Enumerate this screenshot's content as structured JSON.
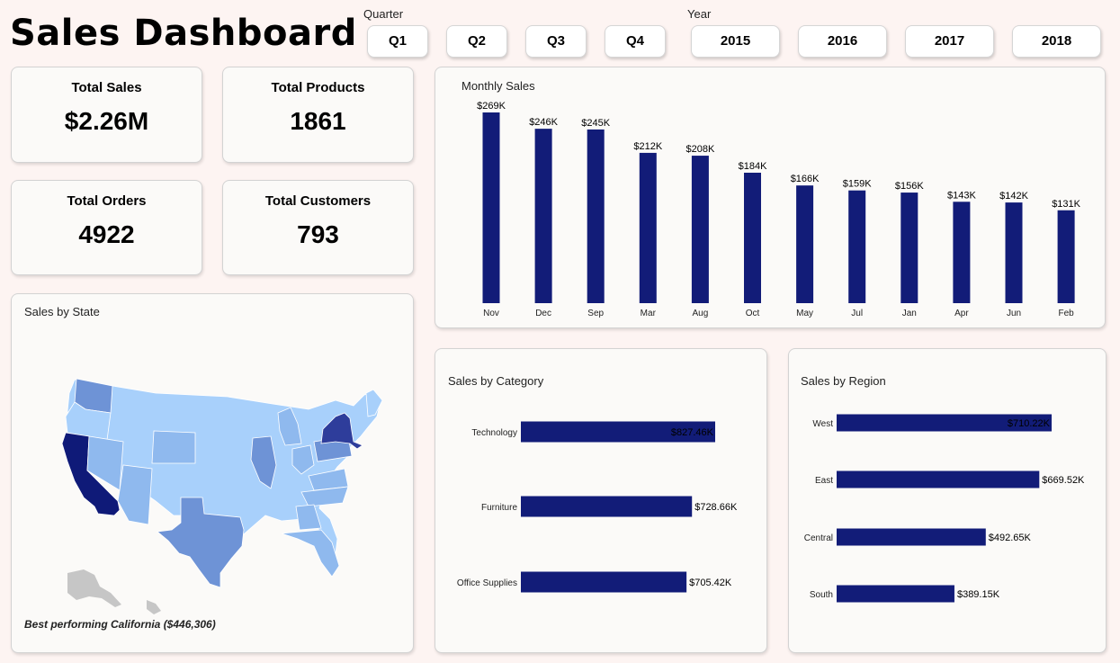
{
  "header": {
    "title": "Sales Dashboard"
  },
  "slicers": {
    "quarter_label": "Quarter",
    "year_label": "Year",
    "quarters": [
      "Q1",
      "Q2",
      "Q3",
      "Q4"
    ],
    "years": [
      "2015",
      "2016",
      "2017",
      "2018"
    ]
  },
  "kpis": {
    "total_sales": {
      "label": "Total Sales",
      "value": "$2.26M"
    },
    "total_products": {
      "label": "Total Products",
      "value": "1861"
    },
    "total_orders": {
      "label": "Total Orders",
      "value": "4922"
    },
    "total_customers": {
      "label": "Total Customers",
      "value": "793"
    }
  },
  "map": {
    "title": "Sales by State",
    "note": "Best performing California ($446,306)",
    "colors": {
      "light": "#a8d0fb",
      "mid": "#8fb9ee",
      "medium": "#6e93d6",
      "dark": "#2e3d9b",
      "darkest": "#0f1a78",
      "other": "#c6c6c6"
    }
  },
  "colors": {
    "bar": "#121c78",
    "card_bg": "#fbfaf8",
    "page_bg": "#fdf4f2"
  },
  "chart_data": [
    {
      "id": "monthly",
      "type": "bar",
      "title": "Monthly Sales",
      "categories": [
        "Nov",
        "Dec",
        "Sep",
        "Mar",
        "Aug",
        "Oct",
        "May",
        "Jul",
        "Jan",
        "Apr",
        "Jun",
        "Feb"
      ],
      "values": [
        269,
        246,
        245,
        212,
        208,
        184,
        166,
        159,
        156,
        143,
        142,
        131
      ],
      "labels": [
        "$269K",
        "$246K",
        "$245K",
        "$212K",
        "$208K",
        "$184K",
        "$166K",
        "$159K",
        "$156K",
        "$143K",
        "$142K",
        "$131K"
      ],
      "ylim": [
        0,
        269
      ]
    },
    {
      "id": "category",
      "type": "bar",
      "orientation": "horizontal",
      "title": "Sales by Category",
      "categories": [
        "Technology",
        "Furniture",
        "Office Supplies"
      ],
      "values": [
        827.46,
        728.66,
        705.42
      ],
      "labels": [
        "$827.46K",
        "$728.66K",
        "$705.42K"
      ],
      "xlim": [
        0,
        827.46
      ]
    },
    {
      "id": "region",
      "type": "bar",
      "orientation": "horizontal",
      "title": "Sales by Region",
      "categories": [
        "West",
        "East",
        "Central",
        "South"
      ],
      "values": [
        710.22,
        669.52,
        492.65,
        389.15
      ],
      "labels": [
        "$710.22K",
        "$669.52K",
        "$492.65K",
        "$389.15K"
      ],
      "xlim": [
        0,
        710.22
      ]
    }
  ]
}
